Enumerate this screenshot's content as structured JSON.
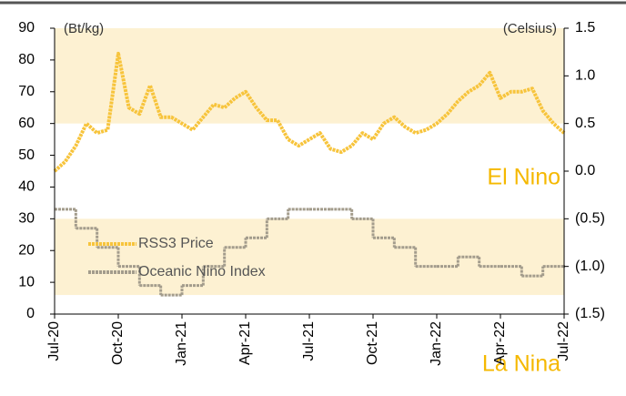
{
  "chart_data": {
    "type": "line",
    "x": [
      0,
      0.5,
      1,
      1.5,
      2,
      2.5,
      3,
      3.5,
      4,
      4.5,
      5,
      5.5,
      6,
      6.5,
      7,
      7.5,
      8,
      8.5,
      9,
      9.5,
      10,
      10.5,
      11,
      11.5,
      12,
      12.5,
      13,
      13.5,
      14,
      14.5,
      15,
      15.5,
      16,
      16.5,
      17,
      17.5,
      18,
      18.5,
      19,
      19.5,
      20,
      20.5,
      21,
      21.5,
      22,
      22.5,
      23,
      23.5,
      24
    ],
    "xlim": [
      0,
      24
    ],
    "xticks": [
      {
        "value": 0,
        "label": "Jul-20"
      },
      {
        "value": 3,
        "label": "Oct-20"
      },
      {
        "value": 6,
        "label": "Jan-21"
      },
      {
        "value": 9,
        "label": "Apr-21"
      },
      {
        "value": 12,
        "label": "Jul-21"
      },
      {
        "value": 15,
        "label": "Oct-21"
      },
      {
        "value": 18,
        "label": "Jan-22"
      },
      {
        "value": 21,
        "label": "Apr-22"
      },
      {
        "value": 24,
        "label": "Jul-22"
      }
    ],
    "ylim": [
      0,
      90
    ],
    "yticks": [
      0,
      10,
      20,
      30,
      40,
      50,
      60,
      70,
      80,
      90
    ],
    "y2lim": [
      -1.5,
      1.5
    ],
    "y2ticks": [
      {
        "value": 1.5,
        "label": "1.5"
      },
      {
        "value": 1.0,
        "label": "1.0"
      },
      {
        "value": 0.5,
        "label": "0.5"
      },
      {
        "value": 0.0,
        "label": "0.0"
      },
      {
        "value": -0.5,
        "label": "(0.5)"
      },
      {
        "value": -1.0,
        "label": "(1.0)"
      },
      {
        "value": -1.5,
        "label": "(1.5)"
      }
    ],
    "ylabel": "(Bt/kg)",
    "y2label": "(Celsius)",
    "bands": [
      {
        "label": "El Nino",
        "y2": [
          0.5,
          1.5
        ]
      },
      {
        "label": "La Nina",
        "y2": [
          -1.3,
          -0.5
        ]
      }
    ],
    "band_color": "#fdf1d2",
    "series": [
      {
        "name": "RSS3 Price",
        "color": "#f7c43c",
        "values": [
          45,
          48,
          53,
          60,
          57,
          58,
          82,
          65,
          63,
          72,
          62,
          62,
          60,
          58,
          62,
          66,
          65,
          68,
          70,
          65,
          61,
          61,
          55,
          53,
          55,
          57,
          52,
          51,
          53,
          57,
          55,
          60,
          62,
          59,
          57,
          58,
          60,
          63,
          67,
          70,
          72,
          76,
          68,
          70,
          70,
          71,
          64,
          60,
          57
        ]
      },
      {
        "name": "Oceanic Nino Index",
        "color": "#a39c8c",
        "axis": "y2",
        "step": true,
        "x": [
          0,
          1,
          2,
          3,
          4,
          5,
          6,
          7,
          8,
          9,
          10,
          11,
          12,
          13,
          14,
          15,
          16,
          17,
          18,
          19,
          20,
          21,
          22,
          23,
          24
        ],
        "values": [
          -0.4,
          -0.6,
          -0.8,
          -1.0,
          -1.2,
          -1.3,
          -1.2,
          -1.0,
          -0.8,
          -0.7,
          -0.5,
          -0.4,
          -0.4,
          -0.4,
          -0.5,
          -0.7,
          -0.8,
          -1.0,
          -1.0,
          -0.9,
          -1.0,
          -1.0,
          -1.1,
          -1.0,
          -1.0
        ]
      }
    ]
  }
}
